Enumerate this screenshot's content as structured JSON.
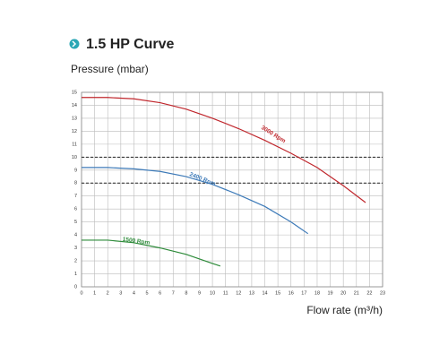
{
  "chart_data": {
    "type": "line",
    "title": "1.5 HP Curve",
    "y_label": "Pressure (mbar)",
    "x_label": "Flow rate (m³/h)",
    "xlim": [
      0,
      23
    ],
    "ylim": [
      0,
      15
    ],
    "xticks": [
      0,
      1,
      2,
      3,
      4,
      5,
      6,
      7,
      8,
      9,
      10,
      11,
      12,
      13,
      14,
      15,
      16,
      17,
      18,
      19,
      20,
      21,
      22,
      23
    ],
    "yticks": [
      0,
      1,
      2,
      3,
      4,
      5,
      6,
      7,
      8,
      9,
      10,
      11,
      12,
      13,
      14,
      15
    ],
    "grid": true,
    "reference_lines": [
      10,
      8
    ],
    "series": [
      {
        "name": "3000 Rpm",
        "color": "#c0272d",
        "x": [
          0,
          2,
          4,
          6,
          8,
          10,
          12,
          14,
          16,
          18,
          20,
          21.7
        ],
        "values": [
          14.6,
          14.6,
          14.5,
          14.2,
          13.7,
          13.0,
          12.2,
          11.3,
          10.3,
          9.2,
          7.8,
          6.5
        ]
      },
      {
        "name": "2400 Rpm",
        "color": "#3d7ab8",
        "x": [
          0,
          2,
          4,
          6,
          8,
          10,
          12,
          14,
          16,
          17.3
        ],
        "values": [
          9.2,
          9.2,
          9.1,
          8.9,
          8.5,
          7.9,
          7.1,
          6.2,
          5.0,
          4.1
        ]
      },
      {
        "name": "1500 Rpm",
        "color": "#2e8b3a",
        "x": [
          0,
          2,
          4,
          6,
          8,
          10,
          10.6
        ],
        "values": [
          3.6,
          3.6,
          3.4,
          3.0,
          2.5,
          1.8,
          1.6
        ]
      }
    ]
  }
}
